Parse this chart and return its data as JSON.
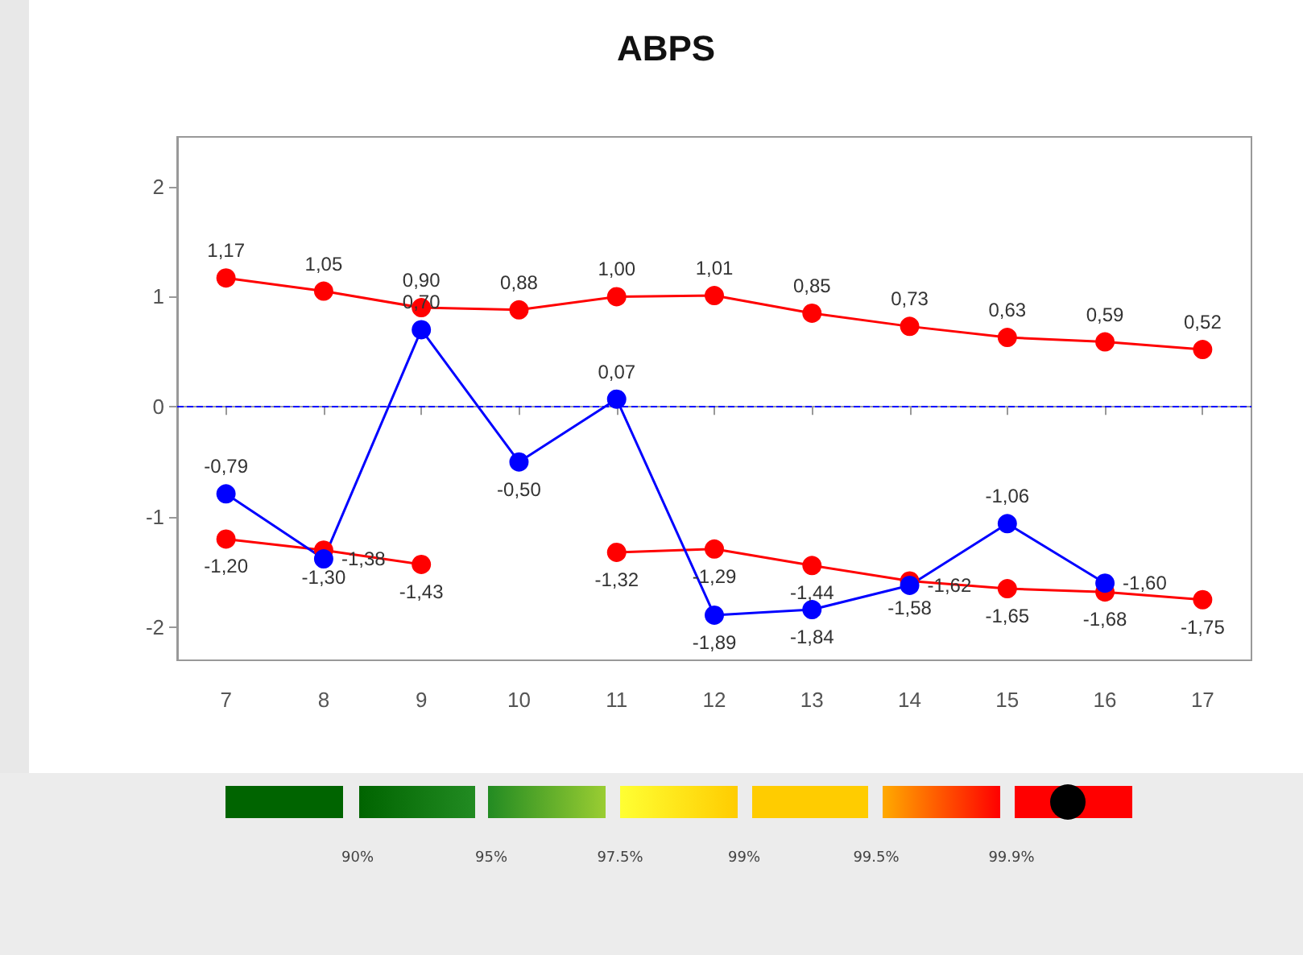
{
  "chart_data": {
    "type": "line",
    "title": "ABPS",
    "categories": [
      "7",
      "8",
      "9",
      "10",
      "11",
      "12",
      "13",
      "14",
      "15",
      "16",
      "17"
    ],
    "series": [
      {
        "color": "#ff0000",
        "values": [
          1.17,
          1.05,
          0.9,
          0.88,
          1.0,
          1.01,
          0.85,
          0.73,
          0.63,
          0.59,
          0.52
        ],
        "value_labels": [
          "1,17",
          "1,05",
          "0,90",
          "0,88",
          "1,00",
          "1,01",
          "0,85",
          "0,73",
          "0,63",
          "0,59",
          "0,52"
        ]
      },
      {
        "color": "#ff0000",
        "values": [
          -1.2,
          -1.3,
          -1.43,
          null,
          -1.32,
          -1.29,
          -1.44,
          -1.58,
          -1.65,
          -1.68,
          -1.75
        ],
        "value_labels": [
          "-1,20",
          "-1,30",
          "-1,43",
          null,
          "-1,32",
          "-1,29",
          "-1,44",
          "-1,58",
          "-1,65",
          "-1,68",
          "-1,75"
        ]
      },
      {
        "color": "#0000ff",
        "values": [
          -0.79,
          -1.38,
          0.7,
          -0.5,
          0.07,
          -1.89,
          -1.84,
          -1.62,
          -1.06,
          -1.6,
          null
        ],
        "value_labels": [
          "-0,79",
          "-1,38",
          "0,70",
          "-0,50",
          "0,07",
          "-1,89",
          "-1,84",
          "-1,62",
          "-1,06",
          "-1,60",
          null
        ]
      }
    ],
    "ylim": [
      -2.3,
      2.45
    ],
    "yticks": [
      -2,
      -1,
      0,
      1,
      2
    ],
    "grid": false,
    "marker": "circle",
    "line_style": "solid",
    "ref_lines": [
      {
        "axis": "y",
        "value": 0,
        "color": "#0000ff",
        "line_style": "dashed"
      }
    ],
    "annotations": [
      "90%",
      "95%",
      "97.5%",
      "99%",
      "99.5%",
      "99.9%"
    ]
  }
}
